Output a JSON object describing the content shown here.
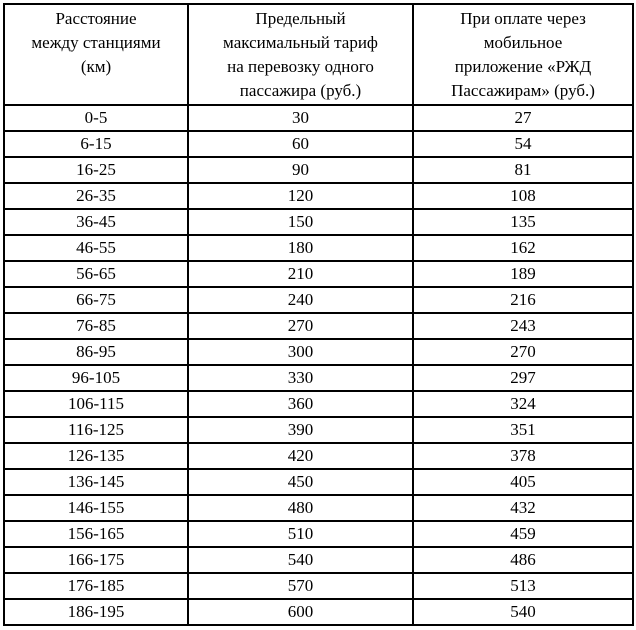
{
  "colors": {
    "background": "#ffffff",
    "border": "#000000",
    "text": "#000000"
  },
  "table": {
    "headers": {
      "distance": "Расстояние\nмежду станциями\n(км)",
      "tariff": "Предельный\nмаксимальный тариф\nна перевозку одного\nпассажира (руб.)",
      "app_tariff": "При оплате через\nмобильное\nприложение «РЖД\nПассажирам» (руб.)"
    },
    "rows": [
      {
        "distance": "0-5",
        "tariff": "30",
        "app_tariff": "27"
      },
      {
        "distance": "6-15",
        "tariff": "60",
        "app_tariff": "54"
      },
      {
        "distance": "16-25",
        "tariff": "90",
        "app_tariff": "81"
      },
      {
        "distance": "26-35",
        "tariff": "120",
        "app_tariff": "108"
      },
      {
        "distance": "36-45",
        "tariff": "150",
        "app_tariff": "135"
      },
      {
        "distance": "46-55",
        "tariff": "180",
        "app_tariff": "162"
      },
      {
        "distance": "56-65",
        "tariff": "210",
        "app_tariff": "189"
      },
      {
        "distance": "66-75",
        "tariff": "240",
        "app_tariff": "216"
      },
      {
        "distance": "76-85",
        "tariff": "270",
        "app_tariff": "243"
      },
      {
        "distance": "86-95",
        "tariff": "300",
        "app_tariff": "270"
      },
      {
        "distance": "96-105",
        "tariff": "330",
        "app_tariff": "297"
      },
      {
        "distance": "106-115",
        "tariff": "360",
        "app_tariff": "324"
      },
      {
        "distance": "116-125",
        "tariff": "390",
        "app_tariff": "351"
      },
      {
        "distance": "126-135",
        "tariff": "420",
        "app_tariff": "378"
      },
      {
        "distance": "136-145",
        "tariff": "450",
        "app_tariff": "405"
      },
      {
        "distance": "146-155",
        "tariff": "480",
        "app_tariff": "432"
      },
      {
        "distance": "156-165",
        "tariff": "510",
        "app_tariff": "459"
      },
      {
        "distance": "166-175",
        "tariff": "540",
        "app_tariff": "486"
      },
      {
        "distance": "176-185",
        "tariff": "570",
        "app_tariff": "513"
      },
      {
        "distance": "186-195",
        "tariff": "600",
        "app_tariff": "540"
      }
    ]
  }
}
